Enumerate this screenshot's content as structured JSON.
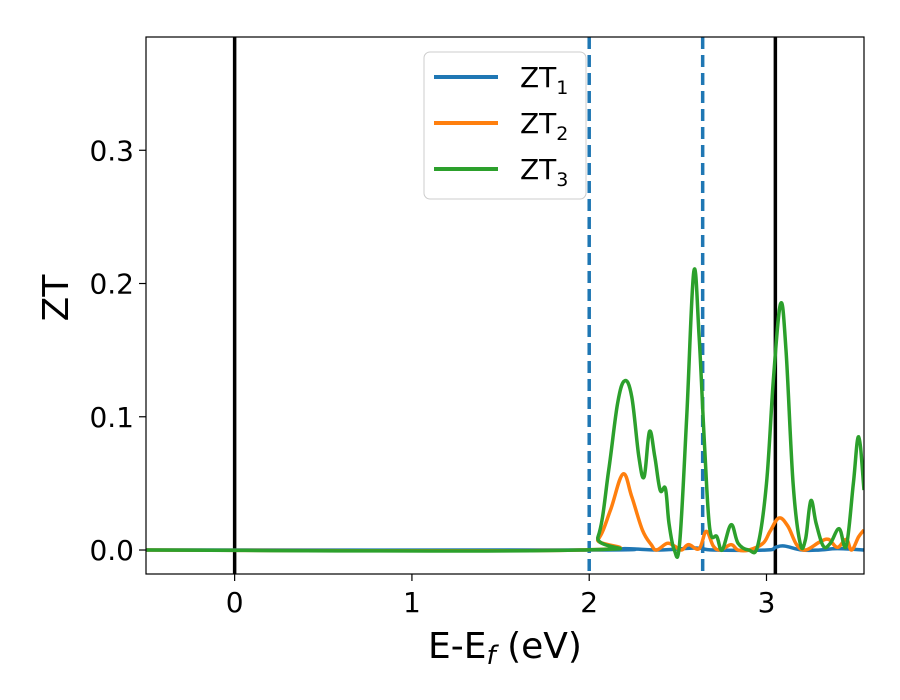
{
  "chart_data": {
    "type": "line",
    "xlabel": {
      "main": "E-E",
      "sub": "f",
      "tail": " (eV)"
    },
    "ylabel": "ZT",
    "xlim": [
      -0.5,
      3.55
    ],
    "ylim": [
      -0.018,
      0.385
    ],
    "xticks": [
      0,
      1,
      2,
      3
    ],
    "xtick_labels": [
      "0",
      "1",
      "2",
      "3"
    ],
    "yticks": [
      0.0,
      0.1,
      0.2,
      0.3
    ],
    "ytick_labels": [
      "0.0",
      "0.1",
      "0.2",
      "0.3"
    ],
    "grid": false,
    "legend_position": "top-center",
    "vlines": [
      {
        "x": 0,
        "style": "solid",
        "color": "#000000"
      },
      {
        "x": 3.05,
        "style": "solid",
        "color": "#000000"
      },
      {
        "x": 2.0,
        "style": "dashed",
        "color": "#1f77b4"
      },
      {
        "x": 2.64,
        "style": "dashed",
        "color": "#1f77b4"
      }
    ],
    "series": [
      {
        "name": "ZT",
        "sub": "1",
        "color": "#1f77b4",
        "points": [
          [
            -0.5,
            0
          ],
          [
            2.0,
            0
          ],
          [
            2.2,
            0.001
          ],
          [
            2.4,
            0
          ],
          [
            2.6,
            0.0015
          ],
          [
            2.7,
            0
          ],
          [
            3.0,
            0
          ],
          [
            3.05,
            0.002
          ],
          [
            3.1,
            0.003
          ],
          [
            3.2,
            0
          ],
          [
            3.3,
            0
          ],
          [
            3.4,
            0.001
          ],
          [
            3.55,
            0
          ]
        ]
      },
      {
        "name": "ZT",
        "sub": "2",
        "color": "#ff7f0e",
        "points": [
          [
            -0.5,
            0
          ],
          [
            1.95,
            0
          ],
          [
            2.05,
            0.008
          ],
          [
            2.12,
            0.03
          ],
          [
            2.19,
            0.057
          ],
          [
            2.24,
            0.04
          ],
          [
            2.3,
            0.015
          ],
          [
            2.35,
            0.004
          ],
          [
            2.38,
            0
          ],
          [
            2.44,
            0.005
          ],
          [
            2.48,
            0.003
          ],
          [
            2.52,
            0
          ],
          [
            2.56,
            0.004
          ],
          [
            2.62,
            0.001
          ],
          [
            2.66,
            0.014
          ],
          [
            2.7,
            0.003
          ],
          [
            2.74,
            0
          ],
          [
            2.8,
            0.004
          ],
          [
            2.84,
            0
          ],
          [
            2.9,
            0
          ],
          [
            2.98,
            0.005
          ],
          [
            3.02,
            0.014
          ],
          [
            3.07,
            0.024
          ],
          [
            3.12,
            0.018
          ],
          [
            3.17,
            0.004
          ],
          [
            3.22,
            0
          ],
          [
            3.3,
            0.006
          ],
          [
            3.35,
            0.008
          ],
          [
            3.4,
            0.002
          ],
          [
            3.45,
            0.008
          ],
          [
            3.48,
            0
          ],
          [
            3.52,
            0.01
          ],
          [
            3.55,
            0.015
          ]
        ]
      },
      {
        "name": "ZT",
        "sub": "3",
        "color": "#2ca02c",
        "points": [
          [
            -0.5,
            0
          ],
          [
            1.95,
            0
          ],
          [
            2.05,
            0.01
          ],
          [
            2.11,
            0.06
          ],
          [
            2.16,
            0.11
          ],
          [
            2.2,
            0.127
          ],
          [
            2.24,
            0.115
          ],
          [
            2.28,
            0.07
          ],
          [
            2.31,
            0.055
          ],
          [
            2.34,
            0.089
          ],
          [
            2.37,
            0.07
          ],
          [
            2.4,
            0.045
          ],
          [
            2.43,
            0.046
          ],
          [
            2.45,
            0.02
          ],
          [
            2.48,
            0
          ],
          [
            2.51,
            0.005
          ],
          [
            2.55,
            0.1
          ],
          [
            2.59,
            0.209
          ],
          [
            2.62,
            0.16
          ],
          [
            2.65,
            0.08
          ],
          [
            2.68,
            0.016
          ],
          [
            2.72,
            0.01
          ],
          [
            2.75,
            0
          ],
          [
            2.8,
            0.019
          ],
          [
            2.84,
            0.005
          ],
          [
            2.9,
            0
          ],
          [
            2.95,
            0.003
          ],
          [
            3.0,
            0.05
          ],
          [
            3.04,
            0.13
          ],
          [
            3.08,
            0.185
          ],
          [
            3.11,
            0.15
          ],
          [
            3.15,
            0.05
          ],
          [
            3.19,
            0.005
          ],
          [
            3.22,
            0.008
          ],
          [
            3.25,
            0.037
          ],
          [
            3.28,
            0.02
          ],
          [
            3.32,
            0.003
          ],
          [
            3.36,
            0.005
          ],
          [
            3.41,
            0.016
          ],
          [
            3.45,
            0.003
          ],
          [
            3.49,
            0.05
          ],
          [
            3.52,
            0.085
          ],
          [
            3.55,
            0.045
          ]
        ]
      }
    ]
  }
}
